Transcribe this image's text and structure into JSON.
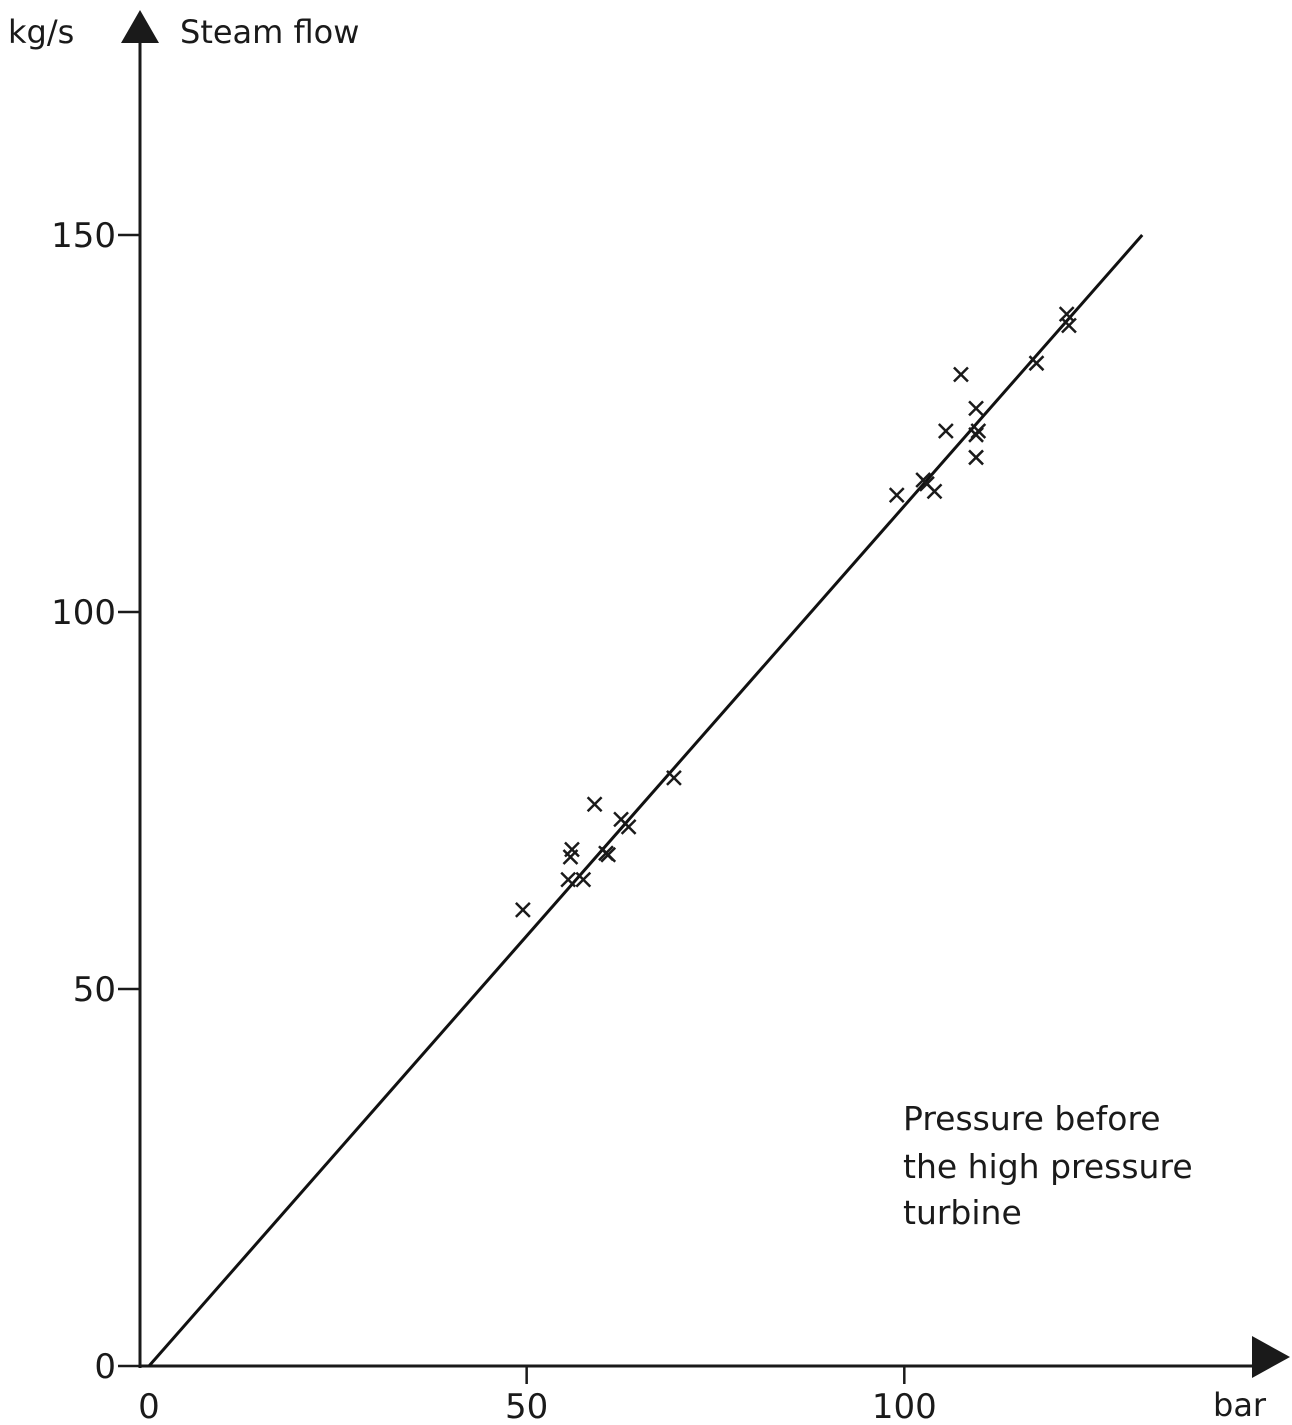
{
  "chart_data": {
    "type": "scatter",
    "ylabel_unit": "kg/s",
    "ylabel": "Steam flow",
    "xlabel_unit": "bar",
    "annotation": [
      "Pressure before",
      "the high pressure",
      "turbine"
    ],
    "xlim": [
      0,
      150
    ],
    "ylim": [
      0,
      175
    ],
    "x_ticks": [
      0,
      50,
      100
    ],
    "y_ticks": [
      0,
      50,
      100,
      150
    ],
    "grid": false,
    "points": [
      {
        "x": 49.5,
        "y": 60.5
      },
      {
        "x": 55.5,
        "y": 64.5
      },
      {
        "x": 55.8,
        "y": 67.5
      },
      {
        "x": 56.0,
        "y": 68.5
      },
      {
        "x": 57.5,
        "y": 64.5
      },
      {
        "x": 59.0,
        "y": 74.5
      },
      {
        "x": 60.5,
        "y": 68.0
      },
      {
        "x": 60.8,
        "y": 67.8
      },
      {
        "x": 62.5,
        "y": 72.5
      },
      {
        "x": 63.5,
        "y": 71.5
      },
      {
        "x": 69.5,
        "y": 78.0
      },
      {
        "x": 99.0,
        "y": 115.5
      },
      {
        "x": 102.5,
        "y": 117.5
      },
      {
        "x": 103.0,
        "y": 117.0
      },
      {
        "x": 104.0,
        "y": 116.0
      },
      {
        "x": 105.5,
        "y": 124.0
      },
      {
        "x": 107.5,
        "y": 131.5
      },
      {
        "x": 109.5,
        "y": 127.0
      },
      {
        "x": 109.5,
        "y": 123.5
      },
      {
        "x": 109.8,
        "y": 124.0
      },
      {
        "x": 109.5,
        "y": 120.5
      },
      {
        "x": 117.5,
        "y": 133.0
      },
      {
        "x": 121.5,
        "y": 139.5
      },
      {
        "x": 121.8,
        "y": 138.0
      }
    ],
    "fit_line": {
      "x": [
        0,
        131.5
      ],
      "y": [
        0,
        150.0
      ]
    }
  }
}
